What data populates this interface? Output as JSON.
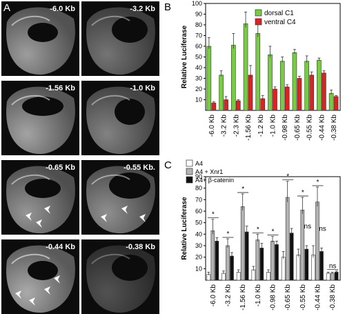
{
  "figure": {
    "panel_labels": {
      "a": "A",
      "b": "B",
      "c": "C"
    },
    "micrographs": [
      {
        "label": "-6.0 Kb",
        "arrows": 0,
        "brightness": 0.75
      },
      {
        "label": "-3.2 Kb",
        "arrows": 0,
        "brightness": 0.45
      },
      {
        "label": "-1.56 Kb",
        "arrows": 0,
        "brightness": 0.8
      },
      {
        "label": "-1.0 Kb",
        "arrows": 0,
        "brightness": 0.55
      },
      {
        "label": "-0.65 Kb",
        "arrows": 3,
        "brightness": 0.7
      },
      {
        "label": "-0.55 Kb.",
        "arrows": 3,
        "brightness": 0.65
      },
      {
        "label": "-0.44 Kb",
        "arrows": 4,
        "brightness": 0.85
      },
      {
        "label": "-0.38 Kb",
        "arrows": 0,
        "brightness": 0.2
      }
    ]
  },
  "chart_data": [
    {
      "type": "bar",
      "panel": "B",
      "ylabel": "Relative Luciferase",
      "ylim": [
        0,
        100
      ],
      "yticks": [
        10,
        20,
        30,
        40,
        50,
        60,
        70,
        80,
        90,
        100
      ],
      "categories": [
        "-6.0 Kb",
        "-3.2 Kb",
        "-2.3 Kb",
        "-1.56 Kb",
        "-1.2 Kb",
        "-1.0 Kb",
        "-0.98 Kb",
        "-0.65 Kb",
        "-0.55 Kb",
        "-0.44 Kb",
        "-0.38 Kb"
      ],
      "series": [
        {
          "name": "dorsal C1",
          "color": "#77cc44",
          "values": [
            60,
            33,
            61,
            81,
            72,
            52,
            46,
            54,
            46,
            47,
            16
          ],
          "errors": [
            8,
            4,
            11,
            11,
            11,
            8,
            4,
            3,
            5,
            2,
            3
          ]
        },
        {
          "name": "ventral C4",
          "color": "#dd2222",
          "values": [
            7,
            10,
            9,
            33,
            11,
            20,
            22,
            30,
            33,
            35,
            13
          ],
          "errors": [
            1,
            3,
            1,
            9,
            3,
            2,
            2,
            2,
            3,
            2,
            1
          ]
        }
      ],
      "legend_position": "top-right"
    },
    {
      "type": "bar",
      "panel": "C",
      "ylabel": "Relative Luciferase",
      "ylim": [
        0,
        90
      ],
      "yticks": [
        10,
        20,
        30,
        40,
        50,
        60,
        70,
        80,
        90
      ],
      "categories": [
        "-6.0 Kb",
        "-3.2 Kb",
        "-1.56 Kb",
        "-1.0 Kb",
        "-0.98 Kb",
        "-0.65 Kb",
        "-0.55 Kb",
        "-0.44 Kb",
        "-0.38 Kb"
      ],
      "series": [
        {
          "name": "A4",
          "color": "#ffffff",
          "values": [
            5,
            6,
            7,
            9,
            7,
            20,
            22,
            22,
            6
          ],
          "errors": [
            2,
            2,
            2,
            3,
            2,
            5,
            5,
            8,
            1
          ]
        },
        {
          "name": "A4 + Xnr1",
          "color": "#b3b3b3",
          "values": [
            43,
            30,
            64,
            35,
            34,
            72,
            61,
            68,
            6
          ],
          "errors": [
            10,
            6,
            11,
            5,
            4,
            14,
            11,
            13,
            1
          ]
        },
        {
          "name": "A4+ β-catenin",
          "color": "#111111",
          "values": [
            34,
            21,
            42,
            28,
            31,
            41,
            27,
            25,
            7
          ],
          "errors": [
            3,
            3,
            5,
            4,
            3,
            4,
            3,
            3,
            1
          ]
        }
      ],
      "significance": [
        {
          "category": "-6.0 Kb",
          "text": "*"
        },
        {
          "category": "-3.2 Kb",
          "text": "*"
        },
        {
          "category": "-1.56 Kb",
          "text": "*"
        },
        {
          "category": "-1.0 Kb",
          "text": "*"
        },
        {
          "category": "-0.98 Kb",
          "text": "*"
        },
        {
          "category": "-0.65 Kb",
          "text": "*"
        },
        {
          "category": "-0.55 Kb",
          "text": "*"
        },
        {
          "category": "-0.55 Kb",
          "text": "ns"
        },
        {
          "category": "-0.44 Kb",
          "text": "*"
        },
        {
          "category": "-0.44 Kb",
          "text": "ns"
        },
        {
          "category": "-0.38 Kb",
          "text": "ns"
        }
      ],
      "legend_position": "top-left"
    }
  ]
}
